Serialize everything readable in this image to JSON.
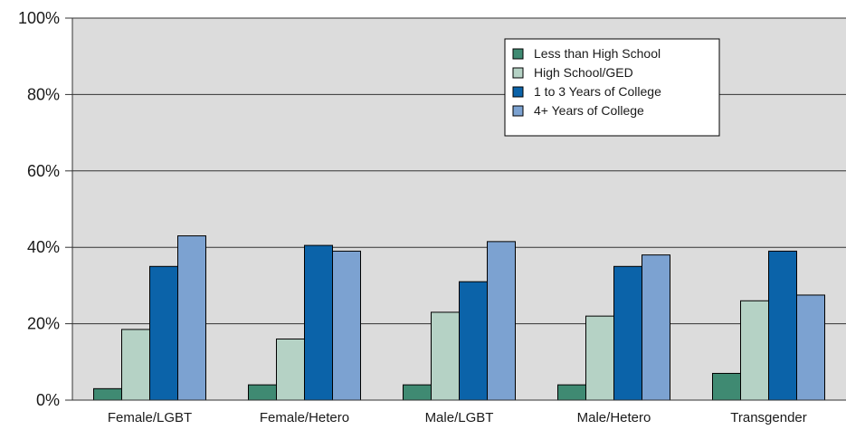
{
  "chart_data": {
    "type": "bar",
    "title": "",
    "xlabel": "",
    "ylabel": "",
    "ylim": [
      0,
      100
    ],
    "yticks": [
      "0%",
      "20%",
      "40%",
      "60%",
      "80%",
      "100%"
    ],
    "grid": true,
    "legend_position": "top-right",
    "categories": [
      "Female/LGBT",
      "Female/Hetero",
      "Male/LGBT",
      "Male/Hetero",
      "Transgender"
    ],
    "series": [
      {
        "name": "Less than High School",
        "color": "#3f8a72",
        "values": [
          3,
          4,
          4,
          4,
          7
        ]
      },
      {
        "name": "High School/GED",
        "color": "#b5d2c5",
        "values": [
          18.5,
          16,
          23,
          22,
          26
        ]
      },
      {
        "name": "1 to 3 Years of College",
        "color": "#0b63a9",
        "values": [
          35,
          40.5,
          31,
          35,
          39
        ]
      },
      {
        "name": "4+ Years of College",
        "color": "#7ca2d1",
        "values": [
          43,
          39,
          41.5,
          38,
          27.5
        ]
      }
    ]
  },
  "colors": {
    "plot_background": "#dcdcdc",
    "grid": "#333333"
  }
}
